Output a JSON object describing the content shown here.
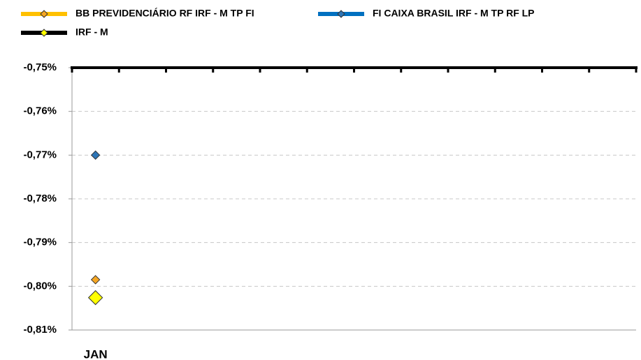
{
  "chart_data": {
    "type": "line",
    "categories": [
      "JAN",
      null,
      null,
      null,
      null,
      null,
      null,
      null,
      null,
      null,
      null,
      null
    ],
    "series": [
      {
        "name": "BB PREVIDENCIÁRIO RF IRF - M TP FI",
        "color": "#ffc000",
        "marker_color": "#f5a623",
        "values": [
          -0.7985,
          null,
          null,
          null,
          null,
          null,
          null,
          null,
          null,
          null,
          null,
          null
        ]
      },
      {
        "name": "FI CAIXA BRASIL IRF - M TP RF LP",
        "color": "#0070c0",
        "marker_color": "#2e75b6",
        "values": [
          -0.77,
          null,
          null,
          null,
          null,
          null,
          null,
          null,
          null,
          null,
          null,
          null
        ]
      },
      {
        "name": "IRF - M",
        "color": "#000000",
        "marker_color": "#ffff00",
        "values": [
          -0.8026,
          null,
          null,
          null,
          null,
          null,
          null,
          null,
          null,
          null,
          null,
          null
        ]
      }
    ],
    "ylim": [
      -0.81,
      -0.75
    ],
    "yticks": [
      {
        "value": -0.81,
        "label": "-0,81%"
      },
      {
        "value": -0.8,
        "label": "-0,80%"
      },
      {
        "value": -0.79,
        "label": "-0,79%"
      },
      {
        "value": -0.78,
        "label": "-0,78%"
      },
      {
        "value": -0.77,
        "label": "-0,77%"
      },
      {
        "value": -0.76,
        "label": "-0,76%"
      },
      {
        "value": -0.75,
        "label": "-0,75%"
      }
    ],
    "grid": true,
    "legend": "top"
  }
}
